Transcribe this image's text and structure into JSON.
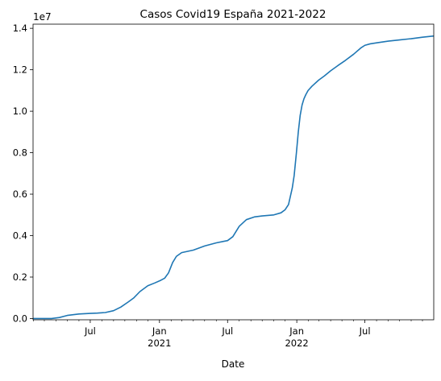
{
  "chart_data": {
    "type": "line",
    "title": "Casos Covid19 España 2021-2022",
    "xlabel": "Date",
    "ylabel": "",
    "y_offset_label": "1e7",
    "y_scale": 10000000,
    "xlim": [
      "2020-01-31",
      "2022-12-31"
    ],
    "ylim": [
      -60000,
      14200000
    ],
    "x_ticks": [
      {
        "date": "2020-07-01",
        "label": "Jul",
        "sublabel": ""
      },
      {
        "date": "2021-01-01",
        "label": "Jan",
        "sublabel": "2021"
      },
      {
        "date": "2021-07-01",
        "label": "Jul",
        "sublabel": ""
      },
      {
        "date": "2022-01-01",
        "label": "Jan",
        "sublabel": "2022"
      },
      {
        "date": "2022-07-01",
        "label": "Jul",
        "sublabel": ""
      }
    ],
    "y_ticks": [
      {
        "value": 0,
        "label": "0.0"
      },
      {
        "value": 2000000,
        "label": "0.2"
      },
      {
        "value": 4000000,
        "label": "0.4"
      },
      {
        "value": 6000000,
        "label": "0.6"
      },
      {
        "value": 8000000,
        "label": "0.8"
      },
      {
        "value": 10000000,
        "label": "1.0"
      },
      {
        "value": 12000000,
        "label": "1.2"
      },
      {
        "value": 14000000,
        "label": "1.4"
      }
    ],
    "grid": false,
    "series": [
      {
        "color": "#1f77b4",
        "x": [
          "2020-01-31",
          "2020-03-01",
          "2020-03-20",
          "2020-04-10",
          "2020-05-01",
          "2020-06-01",
          "2020-07-01",
          "2020-07-20",
          "2020-08-10",
          "2020-09-01",
          "2020-09-20",
          "2020-10-10",
          "2020-10-25",
          "2020-11-10",
          "2020-12-01",
          "2020-12-20",
          "2021-01-05",
          "2021-01-15",
          "2021-01-25",
          "2021-02-05",
          "2021-02-15",
          "2021-03-01",
          "2021-04-01",
          "2021-05-01",
          "2021-06-01",
          "2021-06-20",
          "2021-07-01",
          "2021-07-15",
          "2021-08-01",
          "2021-08-20",
          "2021-09-10",
          "2021-10-01",
          "2021-11-01",
          "2021-11-20",
          "2021-12-01",
          "2021-12-10",
          "2021-12-20",
          "2021-12-25",
          "2021-12-31",
          "2022-01-05",
          "2022-01-10",
          "2022-01-15",
          "2022-01-20",
          "2022-01-25",
          "2022-01-31",
          "2022-02-10",
          "2022-02-28",
          "2022-03-15",
          "2022-04-01",
          "2022-04-20",
          "2022-05-10",
          "2022-06-01",
          "2022-06-20",
          "2022-07-01",
          "2022-07-15",
          "2022-08-01",
          "2022-09-01",
          "2022-10-01",
          "2022-11-01",
          "2022-12-01",
          "2022-12-31"
        ],
        "y": [
          0,
          0,
          0,
          50000,
          150000,
          220000,
          250000,
          265000,
          290000,
          380000,
          550000,
          800000,
          1000000,
          1300000,
          1580000,
          1720000,
          1850000,
          1950000,
          2200000,
          2700000,
          3000000,
          3180000,
          3300000,
          3500000,
          3650000,
          3720000,
          3760000,
          3950000,
          4450000,
          4770000,
          4900000,
          4950000,
          5000000,
          5100000,
          5250000,
          5500000,
          6300000,
          6900000,
          8000000,
          9000000,
          9800000,
          10300000,
          10600000,
          10800000,
          11000000,
          11200000,
          11500000,
          11700000,
          11950000,
          12200000,
          12450000,
          12750000,
          13050000,
          13180000,
          13250000,
          13300000,
          13380000,
          13440000,
          13500000,
          13570000,
          13630000
        ]
      }
    ]
  }
}
